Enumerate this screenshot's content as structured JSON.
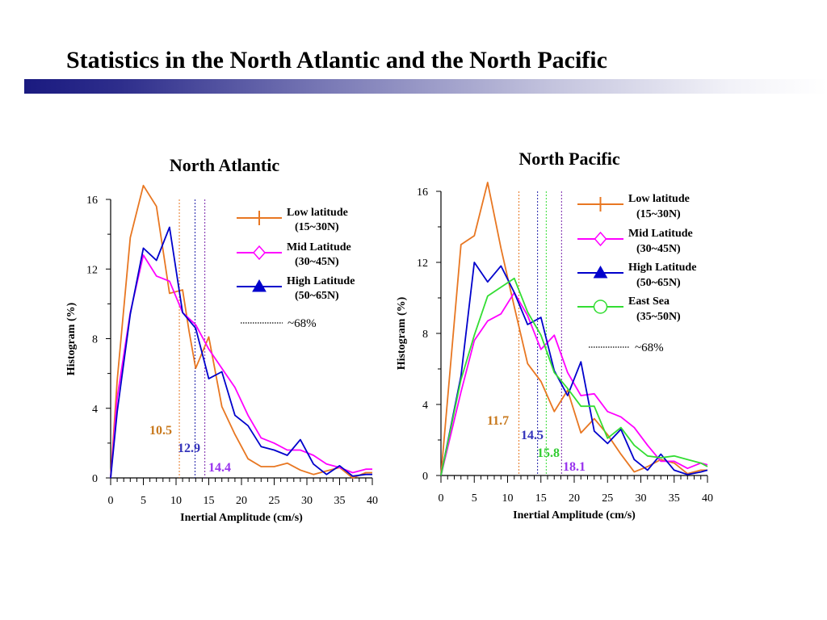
{
  "slide": {
    "title": "Statistics in the North Atlantic and the North Pacific"
  },
  "chart_data": [
    {
      "type": "line",
      "title": "North Atlantic",
      "xlabel": "Inertial Amplitude (cm/s)",
      "ylabel": "Histogram (%)",
      "xlim": [
        0,
        40
      ],
      "ylim": [
        0,
        16
      ],
      "xticks": [
        0,
        5,
        10,
        15,
        20,
        25,
        30,
        35,
        40
      ],
      "yticks": [
        0,
        4,
        8,
        12,
        16
      ],
      "legend_position": "top-right",
      "series": [
        {
          "name": "Low latitude (15~30N)",
          "label_lines": [
            "Low latitude",
            "(15~30N)"
          ],
          "marker": "plus",
          "color": "#e87722",
          "x": [
            0,
            1,
            3,
            5,
            7,
            9,
            11,
            12,
            13,
            15,
            17,
            19,
            21,
            23,
            25,
            27,
            29,
            31,
            33,
            35,
            37,
            39,
            40
          ],
          "y": [
            0,
            5.6,
            13.8,
            16.8,
            15.6,
            10.6,
            10.8,
            8.4,
            6.3,
            8.1,
            4.1,
            2.5,
            1.1,
            0.65,
            0.65,
            0.85,
            0.45,
            0.2,
            0.4,
            0.6,
            0.0,
            0.3,
            0.3
          ]
        },
        {
          "name": "Mid Latitude (30~45N)",
          "label_lines": [
            "Mid Latitude",
            "(30~45N)"
          ],
          "marker": "diamond",
          "color": "#ff00ff",
          "x": [
            0,
            1,
            3,
            5,
            7,
            9,
            11,
            13,
            15,
            17,
            19,
            21,
            23,
            25,
            27,
            29,
            31,
            33,
            35,
            37,
            39,
            40
          ],
          "y": [
            0,
            4.6,
            9.5,
            12.8,
            11.6,
            11.3,
            9.5,
            8.8,
            7.4,
            6.3,
            5.2,
            3.6,
            2.3,
            2.0,
            1.6,
            1.6,
            1.3,
            0.8,
            0.6,
            0.3,
            0.5,
            0.5
          ]
        },
        {
          "name": "High Latitude (50~65N)",
          "label_lines": [
            "High Latitude",
            "(50~65N)"
          ],
          "marker": "triangle",
          "color": "#0000cc",
          "x": [
            0,
            1,
            3,
            5,
            7,
            9,
            11,
            13,
            15,
            17,
            19,
            21,
            23,
            25,
            27,
            29,
            31,
            33,
            35,
            37,
            39,
            40
          ],
          "y": [
            0,
            3.8,
            9.4,
            13.2,
            12.5,
            14.4,
            9.5,
            8.6,
            5.7,
            6.1,
            3.6,
            3.0,
            1.8,
            1.6,
            1.3,
            2.2,
            0.8,
            0.2,
            0.7,
            0.1,
            0.2,
            0.2
          ]
        }
      ],
      "thresholds": [
        {
          "value": 10.5,
          "label": "10.5",
          "color": "#c8781c",
          "line_color": "#e87722"
        },
        {
          "value": 12.9,
          "label": "12.9",
          "color": "#3333bb",
          "line_color": "#2222aa"
        },
        {
          "value": 14.4,
          "label": "14.4",
          "color": "#9933ee",
          "line_color": "#7722aa"
        }
      ],
      "threshold_legend": "~68%"
    },
    {
      "type": "line",
      "title": "North Pacific",
      "xlabel": "Inertial Amplitude (cm/s)",
      "ylabel": "Histogram (%)",
      "xlim": [
        0,
        40
      ],
      "ylim": [
        0,
        16
      ],
      "xticks": [
        0,
        5,
        10,
        15,
        20,
        25,
        30,
        35,
        40
      ],
      "yticks": [
        0,
        4,
        8,
        12,
        16
      ],
      "legend_position": "top-right",
      "series": [
        {
          "name": "Low latitude (15~30N)",
          "label_lines": [
            "Low latitude",
            "(15~30N)"
          ],
          "marker": "plus",
          "color": "#e87722",
          "x": [
            0,
            3,
            5,
            7,
            9,
            11,
            13,
            15,
            17,
            19,
            21,
            23,
            25,
            27,
            29,
            31,
            33,
            35,
            37,
            39,
            40
          ],
          "y": [
            0,
            13.0,
            13.5,
            16.5,
            12.8,
            9.5,
            6.3,
            5.3,
            3.6,
            4.8,
            2.4,
            3.2,
            2.3,
            1.2,
            0.2,
            0.5,
            0.9,
            0.7,
            0.1,
            0.3,
            0.3
          ]
        },
        {
          "name": "Mid Latitude (30~45N)",
          "label_lines": [
            "Mid Latitude",
            "(30~45N)"
          ],
          "marker": "diamond",
          "color": "#ff00ff",
          "x": [
            0,
            3,
            5,
            7,
            9,
            11,
            13,
            15,
            17,
            19,
            21,
            23,
            25,
            27,
            29,
            31,
            33,
            35,
            37,
            39,
            40
          ],
          "y": [
            0,
            4.7,
            7.6,
            8.7,
            9.1,
            10.3,
            9.0,
            7.1,
            7.9,
            5.8,
            4.5,
            4.6,
            3.6,
            3.3,
            2.7,
            1.7,
            0.8,
            0.8,
            0.4,
            0.7,
            0.6
          ]
        },
        {
          "name": "High Latitude (50~65N)",
          "label_lines": [
            "High Latitude",
            "(50~65N)"
          ],
          "marker": "triangle",
          "color": "#0000cc",
          "x": [
            0,
            3,
            5,
            7,
            9,
            11,
            13,
            15,
            17,
            19,
            21,
            23,
            25,
            27,
            29,
            31,
            33,
            35,
            37,
            39,
            40
          ],
          "y": [
            0,
            5.6,
            12.0,
            10.9,
            11.8,
            10.3,
            8.5,
            8.9,
            5.9,
            4.5,
            6.4,
            2.5,
            1.8,
            2.6,
            0.9,
            0.3,
            1.2,
            0.3,
            0.05,
            0.2,
            0.3
          ]
        },
        {
          "name": "East Sea (35~50N)",
          "label_lines": [
            "East Sea",
            "(35~50N)"
          ],
          "marker": "circle",
          "color": "#33dd33",
          "x": [
            0,
            3,
            5,
            7,
            9,
            11,
            13,
            15,
            17,
            19,
            21,
            23,
            25,
            27,
            29,
            31,
            33,
            35,
            37,
            39,
            40
          ],
          "y": [
            0,
            5.4,
            7.9,
            10.1,
            10.6,
            11.1,
            9.2,
            7.9,
            5.8,
            4.9,
            3.9,
            3.9,
            2.1,
            2.7,
            1.7,
            1.1,
            1.0,
            1.1,
            0.9,
            0.7,
            0.5
          ]
        }
      ],
      "thresholds": [
        {
          "value": 11.7,
          "label": "11.7",
          "color": "#c8781c",
          "line_color": "#e87722"
        },
        {
          "value": 14.5,
          "label": "14.5",
          "color": "#3333bb",
          "line_color": "#2222aa"
        },
        {
          "value": 15.8,
          "label": "15.8",
          "color": "#33cc33",
          "line_color": "#33dd33"
        },
        {
          "value": 18.1,
          "label": "18.1",
          "color": "#9933ee",
          "line_color": "#7722aa"
        }
      ],
      "threshold_legend": "~68%"
    }
  ]
}
